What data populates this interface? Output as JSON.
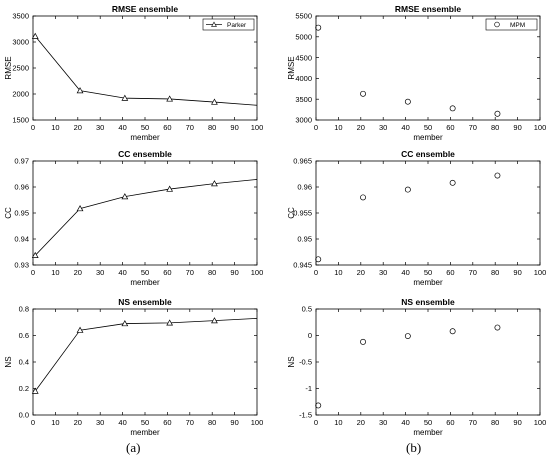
{
  "panel_labels": {
    "left": "(a)",
    "right": "(b)"
  },
  "chart_data": [
    {
      "id": "a1",
      "column": "left",
      "row": 0,
      "type": "line",
      "marker": "triangle",
      "title": "RMSE ensemble",
      "xlabel": "member",
      "ylabel": "RMSE",
      "xlim": [
        0,
        100
      ],
      "ylim": [
        1500,
        3500
      ],
      "xticks": [
        0,
        10,
        20,
        30,
        40,
        50,
        60,
        70,
        80,
        90,
        100
      ],
      "yticks": [
        1500,
        2000,
        2500,
        3000,
        3500
      ],
      "series": [
        {
          "name": "Parker",
          "x": [
            1,
            21,
            41,
            61,
            81,
            101
          ],
          "y": [
            3110,
            2065,
            1920,
            1905,
            1845,
            1780
          ],
          "markers": [
            1,
            21,
            41,
            61,
            81
          ]
        }
      ],
      "legend": "top-right",
      "grid": false
    },
    {
      "id": "a2",
      "column": "left",
      "row": 1,
      "type": "line",
      "marker": "triangle",
      "title": "CC ensemble",
      "xlabel": "member",
      "ylabel": "CC",
      "xlim": [
        0,
        100
      ],
      "ylim": [
        0.93,
        0.97
      ],
      "xticks": [
        0,
        10,
        20,
        30,
        40,
        50,
        60,
        70,
        80,
        90,
        100
      ],
      "yticks": [
        0.93,
        0.94,
        0.95,
        0.96,
        0.97
      ],
      "ytick_decimals": 2,
      "series": [
        {
          "x": [
            1,
            21,
            41,
            61,
            81,
            101
          ],
          "y": [
            0.9337,
            0.9517,
            0.9563,
            0.9592,
            0.9613,
            0.963
          ],
          "markers": [
            1,
            21,
            41,
            61,
            81
          ]
        }
      ],
      "grid": false
    },
    {
      "id": "a3",
      "column": "left",
      "row": 2,
      "type": "line",
      "marker": "triangle",
      "title": "NS ensemble",
      "xlabel": "member",
      "ylabel": "NS",
      "xlim": [
        0,
        100
      ],
      "ylim": [
        0,
        0.8
      ],
      "xticks": [
        0,
        10,
        20,
        30,
        40,
        50,
        60,
        70,
        80,
        90,
        100
      ],
      "yticks": [
        0,
        0.2,
        0.4,
        0.6,
        0.8
      ],
      "ytick_decimals": 1,
      "series": [
        {
          "x": [
            1,
            21,
            41,
            61,
            81,
            101
          ],
          "y": [
            0.18,
            0.64,
            0.69,
            0.695,
            0.712,
            0.73
          ],
          "markers": [
            1,
            21,
            41,
            61,
            81
          ]
        }
      ],
      "grid": false
    },
    {
      "id": "b1",
      "column": "right",
      "row": 0,
      "type": "scatter",
      "marker": "circle",
      "title": "RMSE ensemble",
      "xlabel": "member",
      "ylabel": "RMSE",
      "xlim": [
        0,
        100
      ],
      "ylim": [
        3000,
        5500
      ],
      "xticks": [
        0,
        10,
        20,
        30,
        40,
        50,
        60,
        70,
        80,
        90,
        100
      ],
      "yticks": [
        3000,
        3500,
        4000,
        4500,
        5000,
        5500
      ],
      "series": [
        {
          "name": "MPM",
          "x": [
            1,
            21,
            41,
            61,
            81
          ],
          "y": [
            5220,
            3630,
            3440,
            3280,
            3150
          ]
        }
      ],
      "legend": "top-right",
      "grid": false
    },
    {
      "id": "b2",
      "column": "right",
      "row": 1,
      "type": "scatter",
      "marker": "circle",
      "title": "CC ensemble",
      "xlabel": "member",
      "ylabel": "CC",
      "xlim": [
        0,
        100
      ],
      "ylim": [
        0.945,
        0.965
      ],
      "xticks": [
        0,
        10,
        20,
        30,
        40,
        50,
        60,
        70,
        80,
        90,
        100
      ],
      "yticks": [
        0.945,
        0.95,
        0.955,
        0.96,
        0.965
      ],
      "series": [
        {
          "x": [
            1,
            21,
            41,
            61,
            81
          ],
          "y": [
            0.9461,
            0.958,
            0.9595,
            0.9608,
            0.9622
          ]
        }
      ],
      "grid": false
    },
    {
      "id": "b3",
      "column": "right",
      "row": 2,
      "type": "scatter",
      "marker": "circle",
      "title": "NS ensemble",
      "xlabel": "member",
      "ylabel": "NS",
      "xlim": [
        0,
        100
      ],
      "ylim": [
        -1.5,
        0.5
      ],
      "xticks": [
        0,
        10,
        20,
        30,
        40,
        50,
        60,
        70,
        80,
        90,
        100
      ],
      "yticks": [
        -1.5,
        -1,
        -0.5,
        0,
        0.5
      ],
      "series": [
        {
          "x": [
            1,
            21,
            41,
            61,
            81
          ],
          "y": [
            -1.32,
            -0.12,
            -0.01,
            0.08,
            0.15
          ]
        }
      ],
      "grid": false
    }
  ]
}
